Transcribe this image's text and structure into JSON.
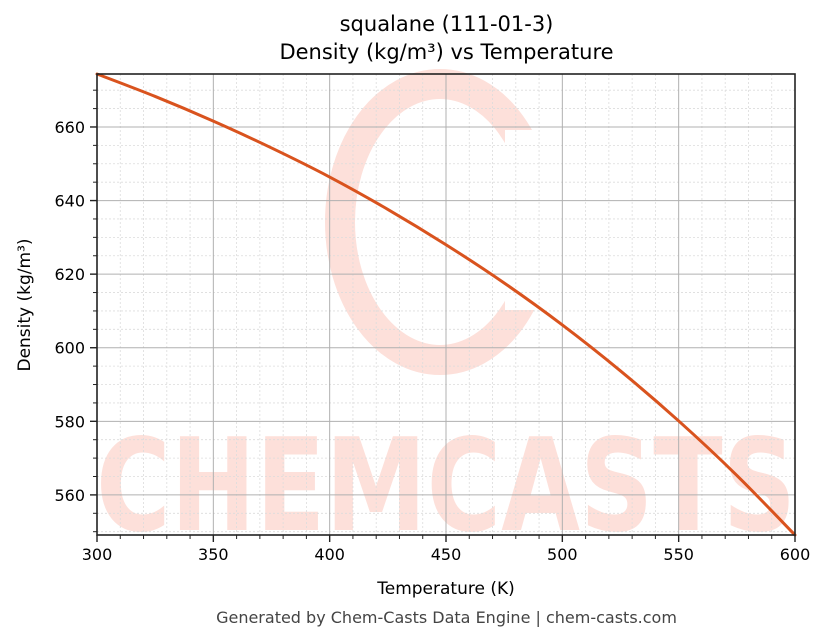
{
  "chart_data": {
    "type": "line",
    "title": "squalane (111-01-3)",
    "subtitle": "Density (kg/m³) vs Temperature",
    "xlabel": "Temperature (K)",
    "ylabel": "Density (kg/m³)",
    "xlim": [
      300,
      600
    ],
    "ylim": [
      549.1,
      674.4
    ],
    "xticks": [
      300,
      350,
      400,
      450,
      500,
      550,
      600
    ],
    "yticks": [
      560,
      580,
      600,
      620,
      640,
      660
    ],
    "grid": {
      "major": true,
      "minor": true
    },
    "legend": null,
    "series": [
      {
        "name": "Density",
        "color": "#d9531e",
        "x": [
          300,
          325,
          350,
          375,
          400,
          425,
          450,
          475,
          500,
          525,
          550,
          575,
          600
        ],
        "values": [
          674.4,
          668.3,
          661.6,
          654.3,
          646.4,
          637.6,
          628.0,
          617.6,
          606.2,
          593.7,
          580.1,
          565.3,
          549.1
        ]
      }
    ]
  },
  "titles": {
    "line1": "squalane (111-01-3)",
    "line2": "Density (kg/m³) vs Temperature"
  },
  "axes": {
    "xlabel": "Temperature (K)",
    "ylabel": "Density (kg/m³)",
    "xtick_labels": [
      "300",
      "350",
      "400",
      "450",
      "500",
      "550",
      "600"
    ],
    "ytick_labels": [
      "560",
      "580",
      "600",
      "620",
      "640",
      "660"
    ]
  },
  "watermark": {
    "text": "CHEMCASTS",
    "color": "#fde0da"
  },
  "footer": {
    "text": "Generated by Chem-Casts Data Engine | chem-casts.com"
  }
}
